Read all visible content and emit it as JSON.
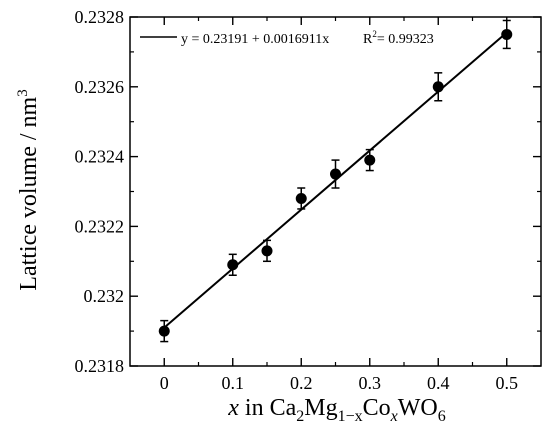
{
  "chart_data": {
    "type": "scatter",
    "title": "",
    "xlabel": {
      "var": "x",
      "in": " in Ca",
      "sub1": "2",
      "mg": "Mg",
      "sub2": "1−x",
      "co": "Co",
      "sub3": "x",
      "wo": "WO",
      "sub4": "6"
    },
    "ylabel": {
      "text": "Lattice volume / nm",
      "sup": "3"
    },
    "xlim": [
      -0.05,
      0.55
    ],
    "ylim": [
      0.2318,
      0.2328
    ],
    "x_ticks": [
      0,
      0.1,
      0.2,
      0.3,
      0.4,
      0.5
    ],
    "x_tick_labels": [
      "0",
      "0.1",
      "0.2",
      "0.3",
      "0.4",
      "0.5"
    ],
    "y_ticks": [
      0.2318,
      0.232,
      0.2322,
      0.2324,
      0.2326,
      0.2328
    ],
    "y_tick_labels": [
      "0.2318",
      "0.232",
      "0.2322",
      "0.2324",
      "0.2326",
      "0.2328"
    ],
    "x_minor_ticks": [
      0.05,
      0.15,
      0.25,
      0.35,
      0.45
    ],
    "y_minor_ticks": [
      0.2319,
      0.2321,
      0.2323,
      0.2325,
      0.2327
    ],
    "grid": false,
    "series": [
      {
        "x": [
          0,
          0.1,
          0.15,
          0.2,
          0.25,
          0.3,
          0.4,
          0.5
        ],
        "y": [
          0.2319,
          0.23209,
          0.23213,
          0.23228,
          0.23235,
          0.23239,
          0.2326,
          0.23275
        ],
        "yerr": [
          3e-05,
          3e-05,
          3e-05,
          3e-05,
          4e-05,
          3e-05,
          4e-05,
          4e-05
        ]
      }
    ],
    "fit": {
      "intercept": 0.23191,
      "slope": 0.0016911,
      "x_range": [
        0,
        0.5
      ],
      "equation": "y = 0.23191 + 0.0016911x",
      "r2_label": "R",
      "r2_sup": "2",
      "r2_value": "= 0.99323"
    },
    "legend_position": "top-left",
    "colors": {
      "marker": "#000000",
      "line": "#000000",
      "axis": "#000000"
    }
  }
}
